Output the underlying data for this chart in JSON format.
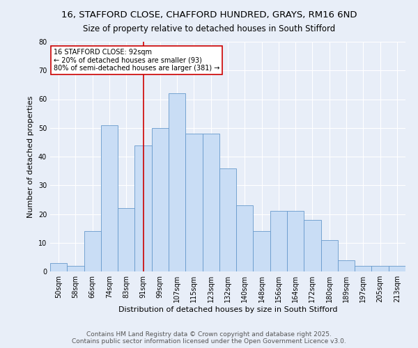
{
  "title": "16, STAFFORD CLOSE, CHAFFORD HUNDRED, GRAYS, RM16 6ND",
  "subtitle": "Size of property relative to detached houses in South Stifford",
  "xlabel": "Distribution of detached houses by size in South Stifford",
  "ylabel": "Number of detached properties",
  "categories": [
    "50sqm",
    "58sqm",
    "66sqm",
    "74sqm",
    "83sqm",
    "91sqm",
    "99sqm",
    "107sqm",
    "115sqm",
    "123sqm",
    "132sqm",
    "140sqm",
    "148sqm",
    "156sqm",
    "164sqm",
    "172sqm",
    "180sqm",
    "189sqm",
    "197sqm",
    "205sqm",
    "213sqm"
  ],
  "values": [
    3,
    2,
    14,
    51,
    22,
    44,
    50,
    62,
    48,
    48,
    36,
    23,
    14,
    21,
    21,
    18,
    11,
    4,
    2,
    2,
    2
  ],
  "bar_color": "#c9ddf5",
  "bar_edge_color": "#6699cc",
  "highlight_index": 5,
  "vline_color": "#cc0000",
  "annotation_text": "16 STAFFORD CLOSE: 92sqm\n← 20% of detached houses are smaller (93)\n80% of semi-detached houses are larger (381) →",
  "annotation_box_color": "#ffffff",
  "annotation_box_edge": "#cc0000",
  "ylim": [
    0,
    80
  ],
  "yticks": [
    0,
    10,
    20,
    30,
    40,
    50,
    60,
    70,
    80
  ],
  "footer": "Contains HM Land Registry data © Crown copyright and database right 2025.\nContains public sector information licensed under the Open Government Licence v3.0.",
  "bg_color": "#e8eef8",
  "plot_bg_color": "#e8eef8",
  "grid_color": "#ffffff",
  "title_fontsize": 9.5,
  "subtitle_fontsize": 8.5,
  "axis_label_fontsize": 8,
  "tick_fontsize": 7,
  "annotation_fontsize": 7,
  "footer_fontsize": 6.5
}
